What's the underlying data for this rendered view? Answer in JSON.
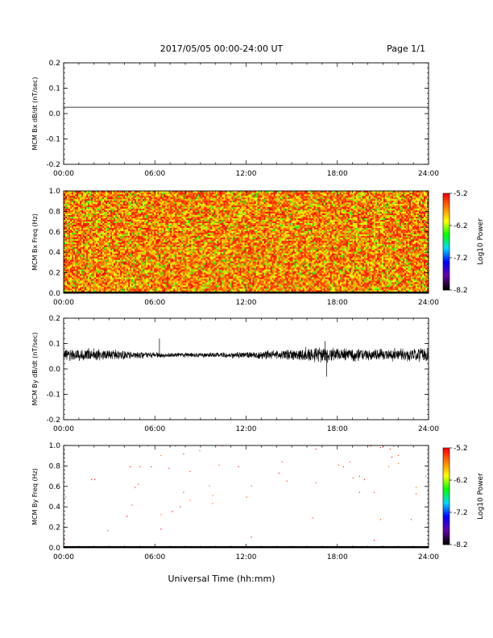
{
  "header": {
    "title": "2017/05/05  00:00-24:00 UT",
    "page": "Page 1/1"
  },
  "xaxis": {
    "label": "Universal Time (hh:mm)",
    "ticks": [
      "00:00",
      "06:00",
      "12:00",
      "18:00",
      "24:00"
    ],
    "range_hours": [
      0,
      24
    ]
  },
  "chart_data": [
    {
      "type": "line",
      "ylabel": "MCM Bx dB/dt (nT/sec)",
      "ylim": [
        -0.2,
        0.2
      ],
      "yticks": [
        "-0.2",
        "-0.1",
        "0.0",
        "0.1",
        "0.2"
      ],
      "series": [
        {
          "x": [
            0,
            24
          ],
          "y": [
            0.025,
            0.025
          ]
        }
      ]
    },
    {
      "type": "heatmap",
      "ylabel": "MCM Bx Freq (Hz)",
      "ylim": [
        0.0,
        1.0
      ],
      "yticks": [
        "0.0",
        "0.2",
        "0.4",
        "0.6",
        "0.8",
        "1.0"
      ],
      "colorbar": {
        "label": "Log10 Power",
        "ticks": [
          "-5.2",
          "-6.2",
          "-7.2",
          "-8.2"
        ],
        "range": [
          -8.2,
          -5.2
        ]
      },
      "fill": "dense",
      "power_range": [
        -6.6,
        -5.2
      ]
    },
    {
      "type": "line",
      "ylabel": "MCM By dB/dt (nT/sec)",
      "ylim": [
        -0.2,
        0.2
      ],
      "yticks": [
        "-0.2",
        "-0.1",
        "0.0",
        "0.1",
        "0.2"
      ],
      "series": [
        {
          "baseline": 0.055,
          "envelope": {
            "x": [
              0,
              3,
              5,
              7,
              9,
              12,
              15,
              17,
              20,
              22,
              24
            ],
            "amplitude": [
              0.03,
              0.025,
              0.015,
              0.01,
              0.01,
              0.015,
              0.025,
              0.035,
              0.025,
              0.03,
              0.03
            ]
          },
          "spikes": [
            {
              "x": 6.3,
              "y": 0.12
            },
            {
              "x": 17.2,
              "y": 0.11
            },
            {
              "x": 17.3,
              "y": -0.03
            }
          ]
        }
      ]
    },
    {
      "type": "heatmap",
      "ylabel": "MCM By Freq (Hz)",
      "ylim": [
        0.0,
        1.0
      ],
      "yticks": [
        "0.0",
        "0.2",
        "0.4",
        "0.6",
        "0.8",
        "1.0"
      ],
      "colorbar": {
        "label": "Log10 Power",
        "ticks": [
          "-5.2",
          "-6.2",
          "-7.2",
          "-8.2"
        ],
        "range": [
          -8.2,
          -5.2
        ]
      },
      "fill": "sparse",
      "power_range": [
        -5.6,
        -5.2
      ]
    }
  ],
  "colors": {
    "line": "#000000",
    "axis": "#000000",
    "colormap": [
      "#000000",
      "#6a00a8",
      "#0000ff",
      "#00d8ff",
      "#00ff00",
      "#ffff00",
      "#ff8000",
      "#ff0000"
    ]
  }
}
